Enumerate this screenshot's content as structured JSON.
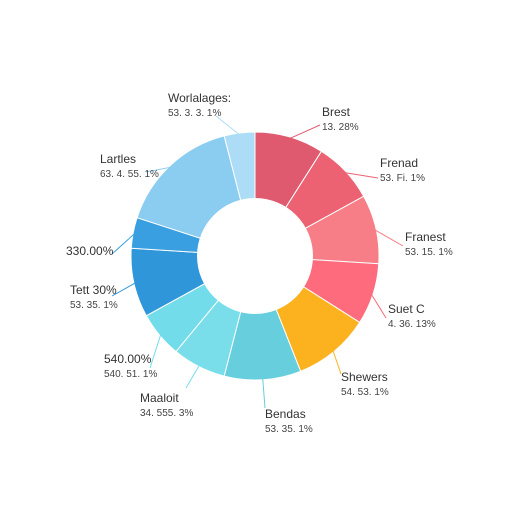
{
  "chart_data": {
    "type": "pie",
    "donut": true,
    "legend": "none",
    "grid": false,
    "slices": [
      {
        "name": "Brest",
        "value_label": "13. 28%",
        "value": 9,
        "color": "#E05A6F"
      },
      {
        "name": "Frenad",
        "value_label": "53. Fi. 1%",
        "value": 8,
        "color": "#EC6272"
      },
      {
        "name": "Franest",
        "value_label": "53. 15. 1%",
        "value": 9,
        "color": "#F77E86"
      },
      {
        "name": "Suet C",
        "value_label": "4. 36. 13%",
        "value": 8,
        "color": "#FD6B7D"
      },
      {
        "name": "Shewers",
        "value_label": "54. 53. 1%",
        "value": 10,
        "color": "#FCB21F"
      },
      {
        "name": "Bendas",
        "value_label": "53. 35. 1%",
        "value": 10,
        "color": "#66CEDC"
      },
      {
        "name": "Maaloit",
        "value_label": "34. 555. 3%",
        "value": 7,
        "color": "#79DDEA"
      },
      {
        "name": "540.00%",
        "value_label": "540. 51. 1%",
        "value": 6,
        "color": "#72DCEB"
      },
      {
        "name": "Tett 30%",
        "value_label": "53. 35. 1%",
        "value": 9,
        "color": "#2F96DA"
      },
      {
        "name": "330.00%",
        "value_label": "",
        "value": 4,
        "color": "#3A9FE0"
      },
      {
        "name": "Lartles",
        "value_label": "63. 4. 55. 1%",
        "value": 16,
        "color": "#8BCCF1"
      },
      {
        "name": "Worlalages:",
        "value_label": "53. 3. 3. 1%",
        "value": 4,
        "color": "#ADDDF6"
      }
    ]
  }
}
